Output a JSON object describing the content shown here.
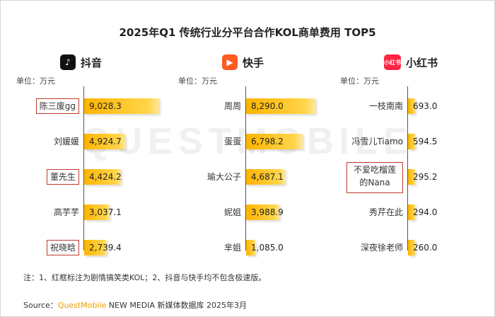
{
  "title": "2025年Q1 传统行业分平台合作KOL商单费用 TOP5",
  "watermark": "QUESTMOBILE",
  "chart_data": [
    {
      "type": "bar",
      "platform": "抖音",
      "logo_icon": "douyin-icon",
      "unit_label": "单位：万元",
      "categories": [
        "陈三废gg",
        "刘媛媛",
        "董先生",
        "高芋芋",
        "祝晓晗"
      ],
      "values": [
        9028.3,
        4924.7,
        4424.2,
        3037.1,
        2739.4
      ],
      "value_labels": [
        "9,028.3",
        "4,924.7",
        "4,424.2",
        "3,037.1",
        "2,739.4"
      ],
      "boxed": [
        true,
        false,
        true,
        false,
        true
      ],
      "xlim": [
        0,
        9500
      ]
    },
    {
      "type": "bar",
      "platform": "快手",
      "logo_icon": "kuaishou-icon",
      "unit_label": "单位：万元",
      "categories": [
        "周周",
        "蛋蛋",
        "瑜大公子",
        "妮姐",
        "芈姐"
      ],
      "values": [
        8290.0,
        6798.2,
        4687.1,
        3988.9,
        1085.0
      ],
      "value_labels": [
        "8,290.0",
        "6,798.2",
        "4,687.1",
        "3,988.9",
        "1,085.0"
      ],
      "boxed": [
        false,
        false,
        false,
        false,
        false
      ],
      "xlim": [
        0,
        9500
      ]
    },
    {
      "type": "bar",
      "platform": "小红书",
      "logo_icon": "xiaohongshu-icon",
      "logo_text": "小红书",
      "unit_label": "单位：万元",
      "categories": [
        "一枝南南",
        "冯雪儿Tiamo",
        "不爱吃榴莲的Nana",
        "秀芹在此",
        "深夜徐老师"
      ],
      "values": [
        693.0,
        594.5,
        295.2,
        294.0,
        260.0
      ],
      "value_labels": [
        "693.0",
        "594.5",
        "295.2",
        "294.0",
        "260.0"
      ],
      "boxed": [
        false,
        false,
        true,
        false,
        false
      ],
      "xlim": [
        0,
        9500
      ]
    }
  ],
  "note": "注：1、红框标注为剧情搞笑类KOL；2、抖音与快手均不包含极速版。",
  "source": {
    "prefix": "Source：",
    "brand": "QuestMobile",
    "rest": " NEW MEDIA 新媒体数据库 2025年3月"
  },
  "colors": {
    "bar": "#ffc21a",
    "box_border": "#c0392b",
    "brand": "#e8a000"
  }
}
